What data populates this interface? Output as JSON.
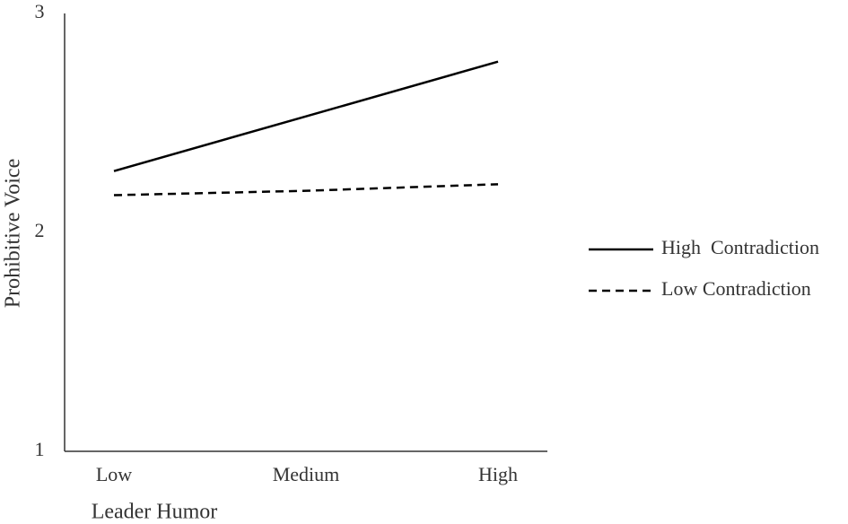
{
  "chart_data": {
    "type": "line",
    "x_label": "Leader Humor",
    "y_label": "Prohibitive Voice",
    "categories": [
      "Low",
      "Medium",
      "High"
    ],
    "series": [
      {
        "name": "High  Contradiction",
        "color": "#000000",
        "dash": "solid",
        "values": [
          2.28,
          2.53,
          2.78
        ]
      },
      {
        "name": "Low Contradiction",
        "color": "#000000",
        "dash": "dashed",
        "values": [
          2.17,
          2.19,
          2.22
        ]
      }
    ],
    "ylim": [
      1,
      3
    ],
    "yticks": [
      1,
      2,
      3
    ],
    "grid": false,
    "legend": "right"
  }
}
